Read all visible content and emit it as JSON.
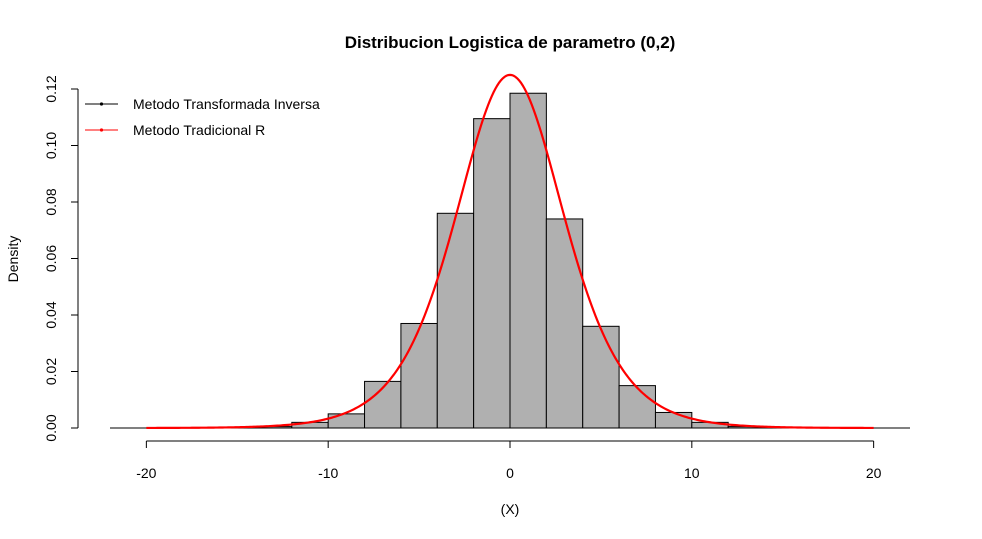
{
  "chart_data": {
    "type": "bar",
    "title": "Distribucion Logistica de parametro (0,2)",
    "xlabel": "(X)",
    "ylabel": "Density",
    "xlim": [
      -22,
      22
    ],
    "ylim": [
      0,
      0.12
    ],
    "x_ticks": [
      -20,
      -10,
      0,
      10,
      20
    ],
    "x_tick_labels": [
      "-20",
      "-10",
      "0",
      "10",
      "20"
    ],
    "y_ticks": [
      0,
      0.02,
      0.04,
      0.06,
      0.08,
      0.1,
      0.12
    ],
    "y_tick_labels": [
      "0.00",
      "0.02",
      "0.04",
      "0.06",
      "0.08",
      "0.10",
      "0.12"
    ],
    "histogram": {
      "bins": [
        [
          -14,
          -12
        ],
        [
          -12,
          -10
        ],
        [
          -10,
          -8
        ],
        [
          -8,
          -6
        ],
        [
          -6,
          -4
        ],
        [
          -4,
          -2
        ],
        [
          -2,
          0
        ],
        [
          0,
          2
        ],
        [
          2,
          4
        ],
        [
          4,
          6
        ],
        [
          6,
          8
        ],
        [
          8,
          10
        ],
        [
          10,
          12
        ],
        [
          12,
          14
        ]
      ],
      "density": [
        0.0005,
        0.002,
        0.005,
        0.0165,
        0.037,
        0.076,
        0.1095,
        0.1185,
        0.074,
        0.036,
        0.015,
        0.0055,
        0.002,
        0.0005
      ],
      "fill": "#b0b0b0",
      "stroke": "#000000"
    },
    "series": [
      {
        "name": "Metodo Tradicional R",
        "kind": "density_curve",
        "distribution": "logistic",
        "location": 0,
        "scale": 2,
        "x_range": [
          -20,
          20
        ],
        "color": "#ff0000"
      }
    ],
    "legend": {
      "placement": "top-left",
      "entries": [
        {
          "label": "Metodo Transformada Inversa",
          "color": "#000000"
        },
        {
          "label": "Metodo Tradicional R",
          "color": "#ff0000"
        }
      ]
    },
    "grid": false
  }
}
